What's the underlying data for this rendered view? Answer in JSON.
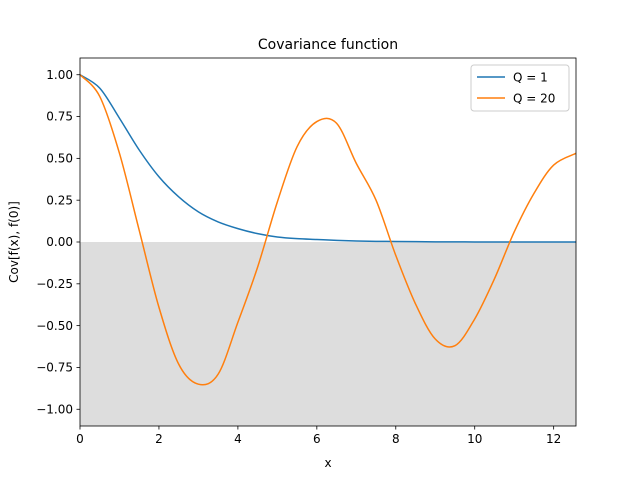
{
  "chart_data": {
    "type": "line",
    "title": "Covariance function",
    "xlabel": "x",
    "ylabel": "Cov[f(x), f(0)]",
    "xlim": [
      0,
      12.566
    ],
    "ylim": [
      -1.1,
      1.1
    ],
    "xticks": [
      0,
      2,
      4,
      6,
      8,
      10,
      12
    ],
    "xtick_labels": [
      "0",
      "2",
      "4",
      "6",
      "8",
      "10",
      "12"
    ],
    "yticks": [
      -1.0,
      -0.75,
      -0.5,
      -0.25,
      0.0,
      0.25,
      0.5,
      0.75,
      1.0
    ],
    "ytick_labels": [
      "−1.00",
      "−0.75",
      "−0.50",
      "−0.25",
      "0.00",
      "0.25",
      "0.50",
      "0.75",
      "1.00"
    ],
    "grid": false,
    "legend_position": "top-right",
    "shaded_region": {
      "y_from": -1.1,
      "y_to": 0.0,
      "color": "#dddddd"
    },
    "series": [
      {
        "name": "Q = 1",
        "color": "#1f77b4",
        "x": [
          0,
          0.5,
          1,
          1.5,
          2,
          2.5,
          3,
          3.5,
          4,
          4.5,
          5,
          5.5,
          6,
          6.5,
          7,
          7.5,
          8,
          8.5,
          9,
          9.5,
          10,
          10.5,
          11,
          11.5,
          12,
          12.566
        ],
        "y": [
          1.0,
          0.92,
          0.74,
          0.55,
          0.39,
          0.27,
          0.18,
          0.12,
          0.08,
          0.05,
          0.03,
          0.02,
          0.015,
          0.01,
          0.006,
          0.004,
          0.003,
          0.002,
          0.001,
          0.001,
          0.0,
          0.0,
          0.0,
          0.0,
          0.0,
          0.0
        ]
      },
      {
        "name": "Q = 20",
        "color": "#ff7f0e",
        "x": [
          0,
          0.5,
          1,
          1.5,
          2,
          2.5,
          3,
          3.5,
          4,
          4.5,
          5,
          5.5,
          6,
          6.5,
          7,
          7.5,
          8,
          8.5,
          9,
          9.5,
          10,
          10.5,
          11,
          11.5,
          12,
          12.566
        ],
        "y": [
          1.0,
          0.87,
          0.53,
          0.07,
          -0.39,
          -0.73,
          -0.85,
          -0.79,
          -0.48,
          -0.15,
          0.24,
          0.57,
          0.72,
          0.71,
          0.47,
          0.25,
          -0.08,
          -0.37,
          -0.58,
          -0.62,
          -0.46,
          -0.22,
          0.06,
          0.29,
          0.46,
          0.53
        ]
      }
    ]
  }
}
